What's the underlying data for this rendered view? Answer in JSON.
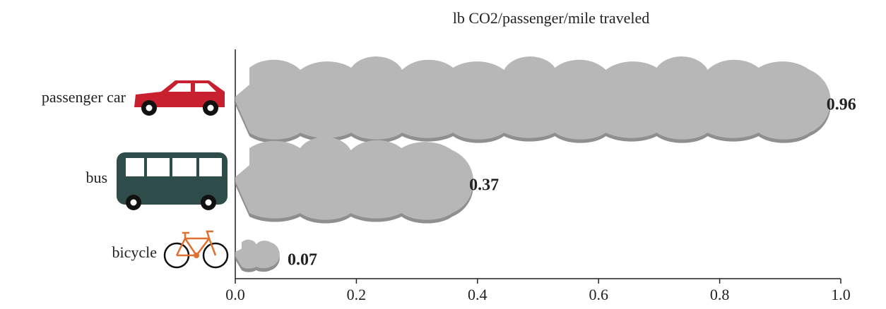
{
  "chart_data": {
    "type": "bar",
    "orientation": "horizontal",
    "title": "lb CO2/passenger/mile traveled",
    "categories": [
      "passenger car",
      "bus",
      "bicycle"
    ],
    "values": [
      0.96,
      0.37,
      0.07
    ],
    "color": "#b7b7b7",
    "xlim": [
      0,
      1.0
    ],
    "xticks": [
      {
        "value": 0,
        "label": "0.0"
      },
      0.2,
      0.4,
      0.6,
      0.8,
      {
        "value": 1.0,
        "label": "1.0"
      }
    ]
  }
}
